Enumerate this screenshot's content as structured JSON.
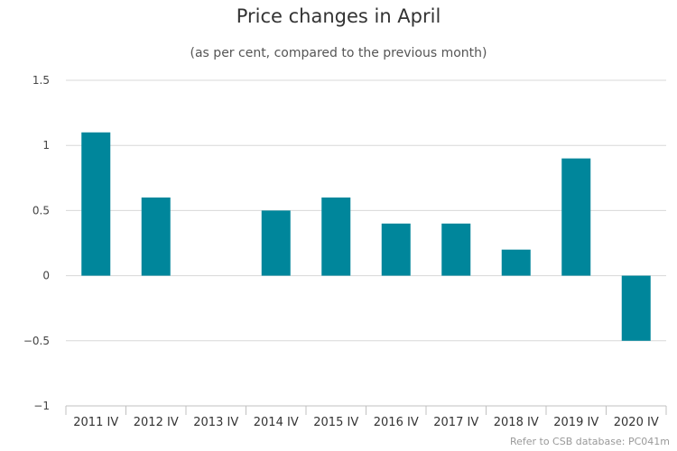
{
  "chart_data": {
    "type": "bar",
    "title": "Price changes in April",
    "subtitle": "(as per cent, compared to the previous month)",
    "xlabel": "",
    "ylabel": "",
    "categories": [
      "2011 IV",
      "2012 IV",
      "2013 IV",
      "2014 IV",
      "2015 IV",
      "2016 IV",
      "2017 IV",
      "2018 IV",
      "2019 IV",
      "2020 IV"
    ],
    "values": [
      1.1,
      0.6,
      0.0,
      0.5,
      0.6,
      0.4,
      0.4,
      0.2,
      0.9,
      -0.5
    ],
    "ylim": [
      -1,
      1.5
    ],
    "yticks": [
      -1,
      -0.5,
      0,
      0.5,
      1,
      1.5
    ],
    "ytick_labels": [
      "−1",
      "−0.5",
      "0",
      "0.5",
      "1",
      "1.5"
    ],
    "grid": true,
    "legend": "none",
    "bar_color": "#00869b"
  },
  "credit": "Refer to CSB database: PC041m"
}
